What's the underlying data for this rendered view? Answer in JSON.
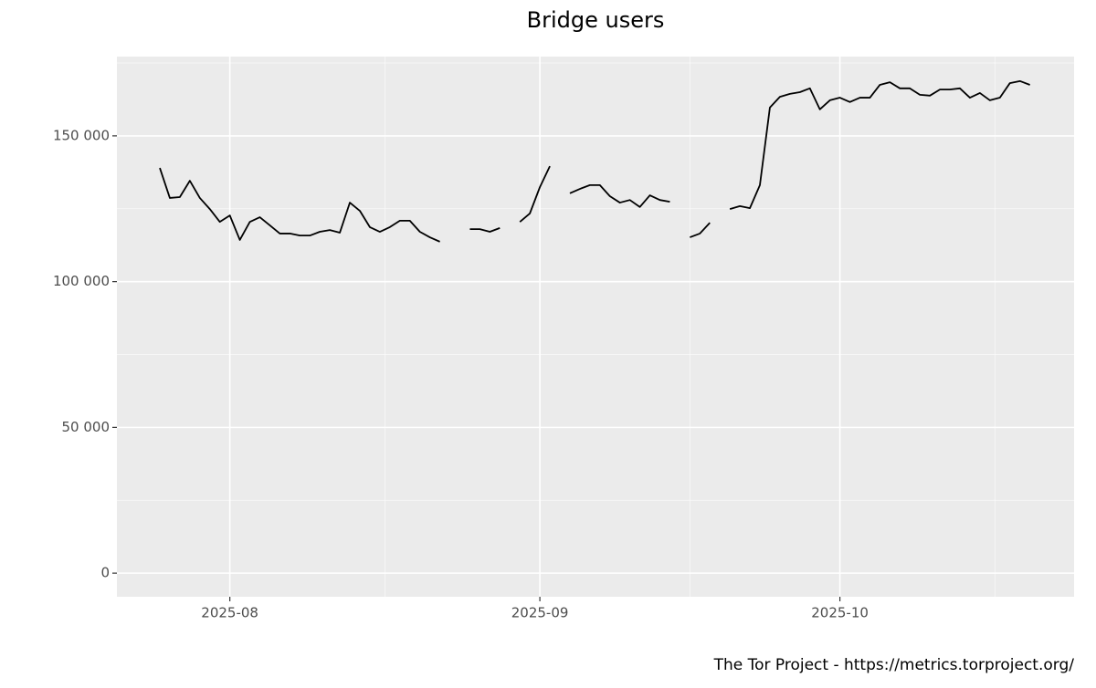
{
  "chart_data": {
    "type": "line",
    "title": "Bridge users",
    "caption": "The Tor Project - https://metrics.torproject.org/",
    "x": [
      "2025-07-25",
      "2025-07-26",
      "2025-07-27",
      "2025-07-28",
      "2025-07-29",
      "2025-07-30",
      "2025-07-31",
      "2025-08-01",
      "2025-08-02",
      "2025-08-03",
      "2025-08-04",
      "2025-08-05",
      "2025-08-06",
      "2025-08-07",
      "2025-08-08",
      "2025-08-09",
      "2025-08-10",
      "2025-08-11",
      "2025-08-12",
      "2025-08-13",
      "2025-08-14",
      "2025-08-15",
      "2025-08-16",
      "2025-08-17",
      "2025-08-18",
      "2025-08-19",
      "2025-08-20",
      "2025-08-21",
      "2025-08-22",
      "2025-08-23",
      "2025-08-24",
      "2025-08-25",
      "2025-08-26",
      "2025-08-27",
      "2025-08-28",
      "2025-08-29",
      "2025-08-30",
      "2025-08-31",
      "2025-09-01",
      "2025-09-02",
      "2025-09-03",
      "2025-09-04",
      "2025-09-05",
      "2025-09-06",
      "2025-09-07",
      "2025-09-08",
      "2025-09-09",
      "2025-09-10",
      "2025-09-11",
      "2025-09-12",
      "2025-09-13",
      "2025-09-14",
      "2025-09-15",
      "2025-09-16",
      "2025-09-17",
      "2025-09-18",
      "2025-09-19",
      "2025-09-20",
      "2025-09-21",
      "2025-09-22",
      "2025-09-23",
      "2025-09-24",
      "2025-09-25",
      "2025-09-26",
      "2025-09-27",
      "2025-09-28",
      "2025-09-29",
      "2025-09-30",
      "2025-10-01",
      "2025-10-02",
      "2025-10-03",
      "2025-10-04",
      "2025-10-05",
      "2025-10-06",
      "2025-10-07",
      "2025-10-08",
      "2025-10-09",
      "2025-10-10",
      "2025-10-11",
      "2025-10-12",
      "2025-10-13",
      "2025-10-14",
      "2025-10-15",
      "2025-10-16",
      "2025-10-17",
      "2025-10-18",
      "2025-10-19",
      "2025-10-20"
    ],
    "series": [
      {
        "color": "#000000",
        "values": [
          139000,
          128700,
          129000,
          134600,
          128700,
          124900,
          120500,
          122700,
          114300,
          120500,
          122100,
          119300,
          116500,
          116500,
          115800,
          115800,
          117100,
          117700,
          116800,
          127100,
          124300,
          118700,
          117100,
          118700,
          120900,
          120900,
          117100,
          115200,
          113700,
          null,
          null,
          118000,
          118000,
          117100,
          118400,
          null,
          120500,
          123400,
          132400,
          139600,
          null,
          130300,
          131800,
          133100,
          133100,
          129300,
          127100,
          128000,
          125600,
          129600,
          128000,
          127400,
          null,
          115200,
          116500,
          120200,
          null,
          124900,
          125900,
          125200,
          133100,
          159700,
          163400,
          164400,
          165000,
          166300,
          159100,
          162200,
          163100,
          161600,
          163100,
          163100,
          167500,
          168400,
          166300,
          166300,
          164100,
          163800,
          165900,
          165900,
          166300,
          163100,
          164700,
          162200,
          163100,
          168100,
          168800,
          167500
        ]
      }
    ],
    "xlim": [
      "2025-07-20T17:00",
      "2025-10-24T10:00"
    ],
    "xticks": [
      {
        "value": "2025-08-01",
        "label": "2025-08"
      },
      {
        "value": "2025-09-01",
        "label": "2025-09"
      },
      {
        "value": "2025-10-01",
        "label": "2025-10"
      }
    ],
    "ylim": [
      -8100,
      177200
    ],
    "yticks": [
      0,
      {
        "value": 50000,
        "label": "50 000"
      },
      {
        "value": 100000,
        "label": "100 000"
      },
      {
        "value": 150000,
        "label": "150 000"
      }
    ],
    "grid": true
  }
}
